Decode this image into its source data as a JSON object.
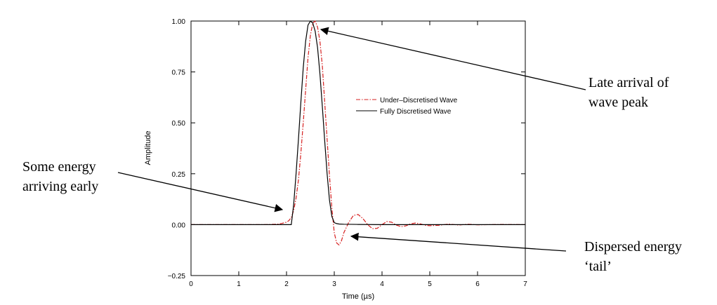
{
  "chart_data": {
    "type": "line",
    "xlabel": "Time (µs)",
    "ylabel": "Amplitude",
    "xlim": [
      0,
      7
    ],
    "ylim": [
      -0.25,
      1.0
    ],
    "xticks": [
      "0",
      "1",
      "2",
      "3",
      "4",
      "5",
      "6",
      "7"
    ],
    "yticks": [
      "−0.25",
      "0.00",
      "0.25",
      "0.50",
      "0.75",
      "1.00"
    ],
    "grid": false,
    "legend_position": "center-right",
    "series": [
      {
        "name": "Under–Discretised Wave",
        "color": "#d62020",
        "style": "dash-dot",
        "x": [
          0,
          1.5,
          1.8,
          1.9,
          2.0,
          2.05,
          2.1,
          2.15,
          2.2,
          2.25,
          2.3,
          2.35,
          2.4,
          2.45,
          2.5,
          2.55,
          2.6,
          2.65,
          2.7,
          2.75,
          2.8,
          2.85,
          2.9,
          2.95,
          3.0,
          3.05,
          3.1,
          3.15,
          3.2,
          3.3,
          3.4,
          3.5,
          3.6,
          3.7,
          3.8,
          3.9,
          4.0,
          4.1,
          4.2,
          4.3,
          4.4,
          4.5,
          4.6,
          4.7,
          4.8,
          4.9,
          5.0,
          5.2,
          5.4,
          5.6,
          5.8,
          6.0,
          6.5,
          7.0
        ],
        "y": [
          0.0,
          0.0,
          0.002,
          0.006,
          0.012,
          0.02,
          0.035,
          0.07,
          0.13,
          0.22,
          0.35,
          0.5,
          0.66,
          0.82,
          0.93,
          0.99,
          1.0,
          0.97,
          0.9,
          0.78,
          0.6,
          0.42,
          0.24,
          0.08,
          -0.04,
          -0.09,
          -0.1,
          -0.08,
          -0.04,
          0.01,
          0.045,
          0.05,
          0.03,
          0.0,
          -0.02,
          -0.018,
          0.0,
          0.015,
          0.012,
          -0.002,
          -0.01,
          -0.006,
          0.004,
          0.008,
          0.004,
          -0.003,
          -0.005,
          -0.003,
          0.003,
          -0.002,
          0.002,
          -0.001,
          0.001,
          0.0
        ]
      },
      {
        "name": "Fully Discretised Wave",
        "color": "#000000",
        "style": "solid",
        "x": [
          0,
          1.5,
          1.8,
          1.9,
          2.0,
          2.05,
          2.1,
          2.15,
          2.2,
          2.25,
          2.3,
          2.35,
          2.4,
          2.45,
          2.5,
          2.55,
          2.6,
          2.65,
          2.7,
          2.75,
          2.8,
          2.85,
          2.9,
          2.95,
          3.0,
          3.05,
          3.1,
          3.2,
          3.5,
          4.0,
          5.0,
          6.0,
          7.0
        ],
        "y": [
          0.0,
          0.0,
          0.0,
          0.0,
          0.0,
          0.0,
          0.0,
          0.1,
          0.25,
          0.42,
          0.6,
          0.77,
          0.9,
          0.98,
          1.0,
          0.99,
          0.95,
          0.87,
          0.74,
          0.58,
          0.41,
          0.25,
          0.12,
          0.04,
          0.01,
          0.005,
          0.003,
          0.002,
          0.001,
          0.0,
          0.0,
          0.0,
          0.0
        ]
      }
    ],
    "annotations": [
      {
        "lines": [
          "Late arrival of",
          "wave peak"
        ],
        "target_x": 2.7,
        "target_y": 0.95
      },
      {
        "lines": [
          "Some energy",
          "arriving early"
        ],
        "target_x": 1.88,
        "target_y": 0.08
      },
      {
        "lines": [
          "Dispersed energy",
          "‘tail’"
        ],
        "target_x": 3.3,
        "target_y": -0.06
      }
    ]
  }
}
